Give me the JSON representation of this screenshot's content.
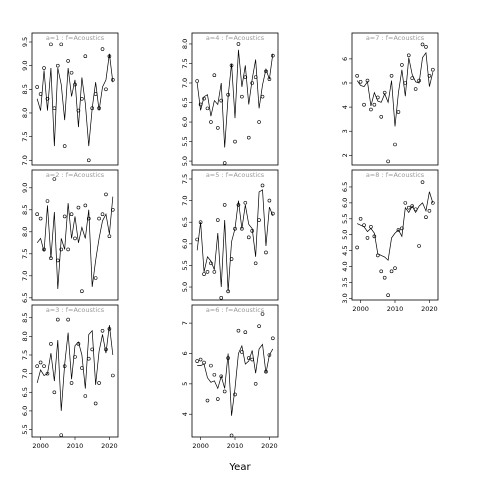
{
  "chart_data": {
    "type": "scatter",
    "xlabel": "Year",
    "xticks": [
      2000,
      2010,
      2020
    ],
    "panels": [
      {
        "label": "a=1 : f=Acoustics",
        "ylim": [
          6.9,
          9.5
        ],
        "yticks": [
          7.0,
          7.5,
          8.0,
          8.5,
          9.0,
          9.5
        ],
        "years": [
          1999,
          2000,
          2001,
          2002,
          2003,
          2004,
          2005,
          2006,
          2007,
          2008,
          2009,
          2010,
          2011,
          2012,
          2013,
          2014,
          2015,
          2016,
          2017,
          2018,
          2019,
          2020,
          2021
        ],
        "points": [
          8.55,
          8.4,
          8.95,
          8.3,
          9.45,
          8.1,
          9.0,
          9.45,
          7.3,
          9.1,
          8.85,
          8.6,
          8.05,
          8.3,
          9.2,
          7.0,
          8.1,
          8.4,
          8.1,
          9.35,
          8.5,
          9.2,
          8.7
        ],
        "line": [
          8.3,
          8.05,
          8.9,
          8.05,
          8.95,
          7.3,
          8.95,
          8.6,
          7.85,
          8.95,
          8.35,
          8.7,
          7.7,
          8.75,
          8.2,
          7.3,
          8.1,
          8.65,
          8.05,
          8.55,
          8.7,
          9.25,
          8.65
        ]
      },
      {
        "label": "a=2 : f=Acoustics",
        "ylim": [
          6.45,
          9.2
        ],
        "yticks": [
          6.5,
          7.0,
          7.5,
          8.0,
          8.5,
          9.0
        ],
        "years": [
          1999,
          2000,
          2001,
          2002,
          2003,
          2004,
          2005,
          2006,
          2007,
          2008,
          2009,
          2010,
          2011,
          2012,
          2013,
          2014,
          2015,
          2016,
          2017,
          2018,
          2019,
          2020,
          2021
        ],
        "points": [
          8.4,
          8.3,
          7.6,
          8.7,
          7.4,
          9.2,
          7.35,
          7.6,
          8.35,
          7.6,
          8.4,
          7.85,
          8.55,
          6.65,
          8.6,
          8.3,
          6.3,
          6.95,
          8.3,
          8.4,
          8.85,
          7.9,
          8.5
        ],
        "line": [
          7.75,
          7.85,
          7.55,
          8.6,
          7.4,
          8.45,
          6.7,
          7.85,
          7.6,
          8.65,
          7.85,
          8.35,
          7.75,
          8.1,
          7.85,
          8.5,
          6.75,
          7.35,
          7.85,
          8.25,
          8.4,
          7.95,
          8.8
        ]
      },
      {
        "label": "a=3 : f=Acoustics",
        "ylim": [
          5.3,
          8.6
        ],
        "yticks": [
          5.5,
          6.0,
          6.5,
          7.0,
          7.5,
          8.0,
          8.5
        ],
        "years": [
          1999,
          2000,
          2001,
          2002,
          2003,
          2004,
          2005,
          2006,
          2007,
          2008,
          2009,
          2010,
          2011,
          2012,
          2013,
          2014,
          2015,
          2016,
          2017,
          2018,
          2019,
          2020,
          2021
        ],
        "points": [
          7.2,
          7.3,
          7.2,
          7.0,
          7.8,
          6.5,
          8.45,
          5.35,
          7.2,
          8.45,
          6.75,
          7.45,
          7.8,
          7.15,
          6.4,
          7.4,
          7.65,
          6.2,
          6.75,
          8.15,
          7.65,
          8.2,
          6.95
        ],
        "line": [
          6.75,
          7.1,
          6.95,
          7.0,
          7.55,
          6.8,
          7.9,
          6.0,
          7.25,
          8.1,
          6.85,
          7.75,
          7.85,
          7.5,
          6.6,
          8.05,
          8.15,
          6.7,
          7.6,
          8.05,
          7.55,
          8.3,
          7.5
        ]
      },
      {
        "label": "a=4 : f=Acoustics",
        "ylim": [
          4.9,
          8.05
        ],
        "yticks": [
          5.0,
          5.5,
          6.0,
          6.5,
          7.0,
          7.5,
          8.0
        ],
        "years": [
          1999,
          2000,
          2001,
          2002,
          2003,
          2004,
          2005,
          2006,
          2007,
          2008,
          2009,
          2010,
          2011,
          2012,
          2013,
          2014,
          2015,
          2016,
          2017,
          2018,
          2019,
          2020,
          2021
        ],
        "points": [
          7.05,
          6.45,
          6.6,
          6.35,
          6.0,
          7.2,
          5.85,
          6.55,
          4.95,
          6.7,
          7.45,
          5.5,
          8.0,
          6.65,
          7.15,
          5.6,
          7.0,
          7.15,
          6.0,
          6.65,
          7.3,
          7.1,
          7.7
        ],
        "line": [
          7.0,
          6.3,
          6.65,
          6.7,
          6.15,
          6.55,
          6.45,
          7.0,
          5.35,
          6.65,
          7.5,
          6.1,
          7.85,
          6.9,
          7.45,
          6.45,
          7.1,
          7.6,
          6.35,
          6.95,
          7.35,
          7.1,
          7.75
        ]
      },
      {
        "label": "a=5 : f=Acoustics",
        "ylim": [
          4.7,
          7.5
        ],
        "yticks": [
          5.0,
          5.5,
          6.0,
          6.5,
          7.0,
          7.5
        ],
        "years": [
          1999,
          2000,
          2001,
          2002,
          2003,
          2004,
          2005,
          2006,
          2007,
          2008,
          2009,
          2010,
          2011,
          2012,
          2013,
          2014,
          2015,
          2016,
          2017,
          2018,
          2019,
          2020,
          2021
        ],
        "points": [
          6.1,
          6.5,
          5.3,
          5.35,
          5.55,
          5.35,
          6.55,
          4.75,
          6.9,
          4.9,
          5.65,
          6.35,
          6.9,
          6.35,
          6.95,
          6.15,
          6.3,
          5.55,
          6.55,
          7.35,
          5.8,
          7.0,
          6.7
        ],
        "line": [
          5.85,
          6.5,
          5.35,
          5.7,
          5.6,
          5.4,
          6.25,
          5.0,
          6.55,
          4.9,
          6.05,
          6.35,
          7.0,
          6.35,
          6.9,
          6.45,
          6.35,
          5.7,
          7.2,
          7.25,
          5.95,
          6.85,
          6.65
        ]
      },
      {
        "label": "a=6 : f=Acoustics",
        "ylim": [
          3.25,
          7.3
        ],
        "yticks": [
          4.0,
          5.0,
          6.0,
          7.0
        ],
        "years": [
          1999,
          2000,
          2001,
          2002,
          2003,
          2004,
          2005,
          2006,
          2007,
          2008,
          2009,
          2010,
          2011,
          2012,
          2013,
          2014,
          2015,
          2016,
          2017,
          2018,
          2019,
          2020,
          2021
        ],
        "points": [
          5.75,
          5.8,
          5.7,
          4.45,
          5.6,
          5.3,
          4.5,
          5.25,
          4.75,
          5.85,
          3.3,
          4.65,
          6.75,
          6.05,
          6.7,
          5.85,
          5.8,
          5.0,
          6.9,
          7.3,
          5.4,
          5.95,
          6.5
        ],
        "line": [
          5.6,
          5.6,
          5.65,
          5.2,
          5.05,
          5.1,
          4.85,
          5.25,
          4.85,
          6.0,
          3.95,
          4.85,
          6.0,
          6.25,
          5.65,
          5.75,
          6.1,
          5.35,
          6.15,
          6.3,
          5.35,
          5.95,
          6.15
        ]
      },
      {
        "label": "a=7 : f=Acoustics",
        "ylim": [
          1.6,
          6.7
        ],
        "yticks": [
          2,
          3,
          4,
          5,
          6
        ],
        "years": [
          1999,
          2000,
          2001,
          2002,
          2003,
          2004,
          2005,
          2006,
          2007,
          2008,
          2009,
          2010,
          2011,
          2012,
          2013,
          2014,
          2015,
          2016,
          2017,
          2018,
          2019,
          2020,
          2021
        ],
        "points": [
          5.3,
          5.05,
          4.1,
          5.1,
          3.9,
          4.1,
          4.4,
          3.6,
          4.6,
          1.75,
          5.3,
          2.45,
          3.8,
          5.75,
          5.0,
          6.15,
          5.2,
          4.75,
          5.1,
          6.6,
          6.5,
          5.3,
          5.55
        ],
        "line": [
          5.1,
          4.9,
          4.85,
          5.05,
          4.05,
          4.6,
          4.25,
          4.2,
          4.55,
          4.2,
          5.1,
          3.2,
          4.6,
          5.55,
          4.45,
          6.05,
          5.35,
          5.05,
          5.0,
          6.05,
          6.25,
          4.85,
          5.45
        ]
      },
      {
        "label": "a=8 : f=Acoustics",
        "ylim": [
          2.95,
          6.75
        ],
        "yticks": [
          3.0,
          3.5,
          4.0,
          4.5,
          5.0,
          5.5,
          6.0,
          6.5
        ],
        "years": [
          1999,
          2000,
          2001,
          2002,
          2003,
          2004,
          2005,
          2006,
          2007,
          2008,
          2009,
          2010,
          2011,
          2012,
          2013,
          2014,
          2015,
          2016,
          2017,
          2018,
          2019,
          2020,
          2021
        ],
        "points": [
          4.6,
          5.5,
          5.3,
          4.9,
          5.25,
          4.95,
          4.35,
          3.85,
          3.65,
          3.1,
          3.85,
          3.95,
          5.15,
          5.2,
          6.0,
          5.85,
          5.9,
          5.8,
          4.65,
          6.65,
          5.55,
          5.75,
          6.0
        ],
        "line": [
          5.35,
          5.3,
          5.25,
          5.1,
          5.2,
          5.05,
          4.4,
          4.35,
          4.3,
          4.2,
          4.9,
          5.05,
          5.15,
          4.95,
          5.85,
          5.7,
          5.9,
          5.7,
          5.9,
          6.0,
          5.75,
          6.35,
          6.0
        ]
      }
    ]
  }
}
